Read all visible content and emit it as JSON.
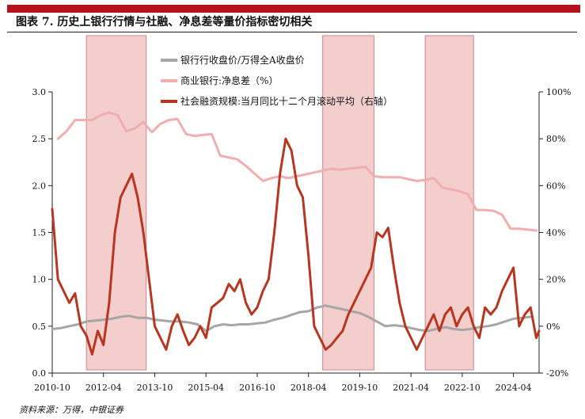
{
  "title": "图表 7. 历史上银行行情与社融、净息差等量价指标密切相关",
  "source": "资料来源：万得，中银证券",
  "colors": {
    "accent_bar": "#b5121b",
    "shade": "#f4cdcd",
    "shade_border": "#c9868a",
    "series_index": "#a6a6a6",
    "series_nim": "#f0aeb0",
    "series_tsf": "#b8361f"
  },
  "chart_data": {
    "type": "line",
    "x_labels": [
      "2010-10",
      "2012-04",
      "2013-10",
      "2015-04",
      "2016-10",
      "2018-04",
      "2019-10",
      "2021-04",
      "2022-10",
      "2024-04"
    ],
    "y_left": {
      "ticks": [
        "0.0",
        "0.5",
        "1.0",
        "1.5",
        "2.0",
        "2.5",
        "3.0"
      ],
      "range": [
        0,
        3
      ]
    },
    "y_right": {
      "ticks": [
        "-20%",
        "0%",
        "20%",
        "40%",
        "60%",
        "80%",
        "100%"
      ],
      "range": [
        -20,
        100
      ]
    },
    "shaded_periods": [
      [
        "2011-10",
        "2013-07"
      ],
      [
        "2018-09",
        "2020-03"
      ],
      [
        "2021-09",
        "2023-02"
      ]
    ],
    "series": [
      {
        "name": "银行行收盘价/万得全A收盘价",
        "axis": "left",
        "color": "#a6a6a6",
        "points": [
          [
            "2010-10",
            0.47
          ],
          [
            "2011-01",
            0.48
          ],
          [
            "2011-04",
            0.5
          ],
          [
            "2011-07",
            0.52
          ],
          [
            "2011-10",
            0.55
          ],
          [
            "2012-01",
            0.56
          ],
          [
            "2012-04",
            0.57
          ],
          [
            "2012-07",
            0.58
          ],
          [
            "2012-10",
            0.6
          ],
          [
            "2013-01",
            0.61
          ],
          [
            "2013-04",
            0.59
          ],
          [
            "2013-07",
            0.59
          ],
          [
            "2013-10",
            0.57
          ],
          [
            "2014-01",
            0.56
          ],
          [
            "2014-04",
            0.55
          ],
          [
            "2014-07",
            0.55
          ],
          [
            "2014-10",
            0.54
          ],
          [
            "2015-01",
            0.52
          ],
          [
            "2015-04",
            0.45
          ],
          [
            "2015-07",
            0.5
          ],
          [
            "2015-10",
            0.52
          ],
          [
            "2016-01",
            0.51
          ],
          [
            "2016-04",
            0.52
          ],
          [
            "2016-07",
            0.52
          ],
          [
            "2016-10",
            0.53
          ],
          [
            "2017-01",
            0.54
          ],
          [
            "2017-04",
            0.57
          ],
          [
            "2017-07",
            0.59
          ],
          [
            "2017-10",
            0.62
          ],
          [
            "2018-01",
            0.65
          ],
          [
            "2018-04",
            0.66
          ],
          [
            "2018-07",
            0.7
          ],
          [
            "2018-10",
            0.72
          ],
          [
            "2019-01",
            0.7
          ],
          [
            "2019-04",
            0.68
          ],
          [
            "2019-07",
            0.66
          ],
          [
            "2019-10",
            0.64
          ],
          [
            "2020-01",
            0.6
          ],
          [
            "2020-04",
            0.55
          ],
          [
            "2020-07",
            0.5
          ],
          [
            "2020-10",
            0.51
          ],
          [
            "2021-01",
            0.5
          ],
          [
            "2021-04",
            0.48
          ],
          [
            "2021-07",
            0.46
          ],
          [
            "2021-10",
            0.45
          ],
          [
            "2022-01",
            0.47
          ],
          [
            "2022-04",
            0.49
          ],
          [
            "2022-07",
            0.47
          ],
          [
            "2022-10",
            0.46
          ],
          [
            "2023-01",
            0.47
          ],
          [
            "2023-04",
            0.49
          ],
          [
            "2023-07",
            0.5
          ],
          [
            "2023-10",
            0.52
          ],
          [
            "2024-01",
            0.55
          ],
          [
            "2024-04",
            0.58
          ],
          [
            "2024-07",
            0.59
          ],
          [
            "2024-10",
            0.6
          ]
        ]
      },
      {
        "name": "商业银行:净息差（%）",
        "axis": "left",
        "color": "#f0aeb0",
        "points": [
          [
            "2010-12",
            2.5
          ],
          [
            "2011-03",
            2.58
          ],
          [
            "2011-06",
            2.7
          ],
          [
            "2011-09",
            2.7
          ],
          [
            "2011-12",
            2.7
          ],
          [
            "2012-03",
            2.75
          ],
          [
            "2012-06",
            2.78
          ],
          [
            "2012-09",
            2.75
          ],
          [
            "2012-12",
            2.58
          ],
          [
            "2013-03",
            2.61
          ],
          [
            "2013-06",
            2.68
          ],
          [
            "2013-09",
            2.57
          ],
          [
            "2013-12",
            2.66
          ],
          [
            "2014-03",
            2.7
          ],
          [
            "2014-06",
            2.71
          ],
          [
            "2014-09",
            2.55
          ],
          [
            "2014-12",
            2.53
          ],
          [
            "2015-03",
            2.54
          ],
          [
            "2015-06",
            2.55
          ],
          [
            "2015-09",
            2.32
          ],
          [
            "2015-12",
            2.3
          ],
          [
            "2016-03",
            2.28
          ],
          [
            "2016-06",
            2.21
          ],
          [
            "2016-09",
            2.13
          ],
          [
            "2016-12",
            2.05
          ],
          [
            "2017-03",
            2.08
          ],
          [
            "2017-06",
            2.1
          ],
          [
            "2017-09",
            2.08
          ],
          [
            "2017-12",
            2.1
          ],
          [
            "2018-03",
            2.12
          ],
          [
            "2018-06",
            2.14
          ],
          [
            "2018-09",
            2.16
          ],
          [
            "2018-12",
            2.18
          ],
          [
            "2019-03",
            2.17
          ],
          [
            "2019-06",
            2.18
          ],
          [
            "2019-09",
            2.19
          ],
          [
            "2019-12",
            2.2
          ],
          [
            "2020-03",
            2.1
          ],
          [
            "2020-06",
            2.09
          ],
          [
            "2020-09",
            2.09
          ],
          [
            "2020-12",
            2.09
          ],
          [
            "2021-03",
            2.07
          ],
          [
            "2021-06",
            2.05
          ],
          [
            "2021-09",
            2.06
          ],
          [
            "2021-12",
            2.08
          ],
          [
            "2022-03",
            1.98
          ],
          [
            "2022-06",
            1.96
          ],
          [
            "2022-09",
            1.94
          ],
          [
            "2022-12",
            1.91
          ],
          [
            "2023-03",
            1.74
          ],
          [
            "2023-06",
            1.74
          ],
          [
            "2023-09",
            1.73
          ],
          [
            "2023-12",
            1.69
          ],
          [
            "2024-03",
            1.54
          ],
          [
            "2024-06",
            1.54
          ],
          [
            "2024-09",
            1.53
          ],
          [
            "2024-12",
            1.52
          ]
        ]
      },
      {
        "name": "社会融资规模:当月同比十二个月滚动平均（右轴）",
        "axis": "right",
        "color": "#b8361f",
        "points": [
          [
            "2010-10",
            50
          ],
          [
            "2010-12",
            20
          ],
          [
            "2011-02",
            15
          ],
          [
            "2011-04",
            10
          ],
          [
            "2011-06",
            14
          ],
          [
            "2011-08",
            0
          ],
          [
            "2011-10",
            -4
          ],
          [
            "2011-12",
            -12
          ],
          [
            "2012-02",
            -2
          ],
          [
            "2012-04",
            -8
          ],
          [
            "2012-06",
            10
          ],
          [
            "2012-08",
            40
          ],
          [
            "2012-10",
            55
          ],
          [
            "2012-12",
            60
          ],
          [
            "2013-02",
            65
          ],
          [
            "2013-04",
            55
          ],
          [
            "2013-06",
            40
          ],
          [
            "2013-08",
            20
          ],
          [
            "2013-10",
            0
          ],
          [
            "2013-12",
            -5
          ],
          [
            "2014-02",
            -10
          ],
          [
            "2014-04",
            0
          ],
          [
            "2014-06",
            5
          ],
          [
            "2014-08",
            -2
          ],
          [
            "2014-10",
            -8
          ],
          [
            "2014-12",
            -5
          ],
          [
            "2015-02",
            0
          ],
          [
            "2015-04",
            -5
          ],
          [
            "2015-06",
            8
          ],
          [
            "2015-08",
            10
          ],
          [
            "2015-10",
            12
          ],
          [
            "2015-12",
            18
          ],
          [
            "2016-02",
            15
          ],
          [
            "2016-04",
            20
          ],
          [
            "2016-06",
            10
          ],
          [
            "2016-08",
            5
          ],
          [
            "2016-10",
            8
          ],
          [
            "2016-12",
            15
          ],
          [
            "2017-02",
            20
          ],
          [
            "2017-04",
            40
          ],
          [
            "2017-06",
            65
          ],
          [
            "2017-08",
            80
          ],
          [
            "2017-10",
            75
          ],
          [
            "2017-12",
            60
          ],
          [
            "2018-02",
            55
          ],
          [
            "2018-04",
            30
          ],
          [
            "2018-06",
            0
          ],
          [
            "2018-08",
            -5
          ],
          [
            "2018-10",
            -10
          ],
          [
            "2018-12",
            -8
          ],
          [
            "2019-02",
            -5
          ],
          [
            "2019-04",
            -2
          ],
          [
            "2019-06",
            5
          ],
          [
            "2019-08",
            10
          ],
          [
            "2019-10",
            15
          ],
          [
            "2019-12",
            20
          ],
          [
            "2020-02",
            25
          ],
          [
            "2020-04",
            40
          ],
          [
            "2020-06",
            38
          ],
          [
            "2020-08",
            42
          ],
          [
            "2020-10",
            25
          ],
          [
            "2020-12",
            10
          ],
          [
            "2021-02",
            0
          ],
          [
            "2021-04",
            -5
          ],
          [
            "2021-06",
            -10
          ],
          [
            "2021-08",
            -5
          ],
          [
            "2021-10",
            0
          ],
          [
            "2021-12",
            5
          ],
          [
            "2022-02",
            -2
          ],
          [
            "2022-04",
            5
          ],
          [
            "2022-06",
            8
          ],
          [
            "2022-08",
            0
          ],
          [
            "2022-10",
            5
          ],
          [
            "2022-12",
            8
          ],
          [
            "2023-02",
            0
          ],
          [
            "2023-04",
            -5
          ],
          [
            "2023-06",
            8
          ],
          [
            "2023-08",
            5
          ],
          [
            "2023-10",
            8
          ],
          [
            "2023-12",
            15
          ],
          [
            "2024-02",
            20
          ],
          [
            "2024-04",
            25
          ],
          [
            "2024-06",
            0
          ],
          [
            "2024-08",
            5
          ],
          [
            "2024-10",
            8
          ],
          [
            "2024-12",
            -5
          ],
          [
            "2025-01",
            -2
          ]
        ]
      }
    ]
  }
}
